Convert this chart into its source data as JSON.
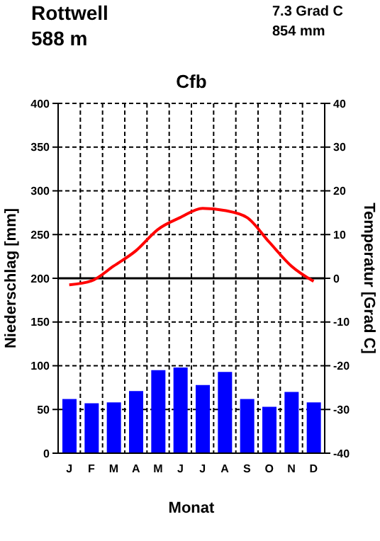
{
  "chart_data": {
    "type": "bar",
    "title": "Cfb",
    "xlabel": "Monat",
    "ylabel": "Niederschlag [mm]",
    "y2label": "Temperatur [Grad C]",
    "annotations": [
      "Rottwell",
      "588 m",
      "7.3 Grad C",
      "854 mm"
    ],
    "categories": [
      "J",
      "F",
      "M",
      "A",
      "M",
      "J",
      "J",
      "A",
      "S",
      "O",
      "N",
      "D"
    ],
    "series": [
      {
        "color": "#0000ff",
        "values": [
          62,
          57,
          58,
          71,
          95,
          98,
          78,
          93,
          62,
          53,
          70,
          58
        ]
      },
      {
        "type": "line",
        "axis": "y2",
        "color": "#ff0000",
        "values": [
          -1.5,
          -0.6,
          2.8,
          6.3,
          11.2,
          13.9,
          16.0,
          15.5,
          13.9,
          8.3,
          2.8,
          -0.7
        ]
      }
    ],
    "ylim": [
      0,
      400
    ],
    "yticks": [
      0,
      50,
      100,
      150,
      200,
      250,
      300,
      350,
      400
    ],
    "y2lim": [
      -40,
      40
    ],
    "y2ticks": [
      -40,
      -30,
      -20,
      -10,
      0,
      10,
      20,
      30,
      40
    ],
    "ref_lines": [
      {
        "axis": "y2",
        "value": 0,
        "color": "#000000"
      }
    ],
    "grid": true,
    "marker": "none",
    "line_style": "solid"
  }
}
